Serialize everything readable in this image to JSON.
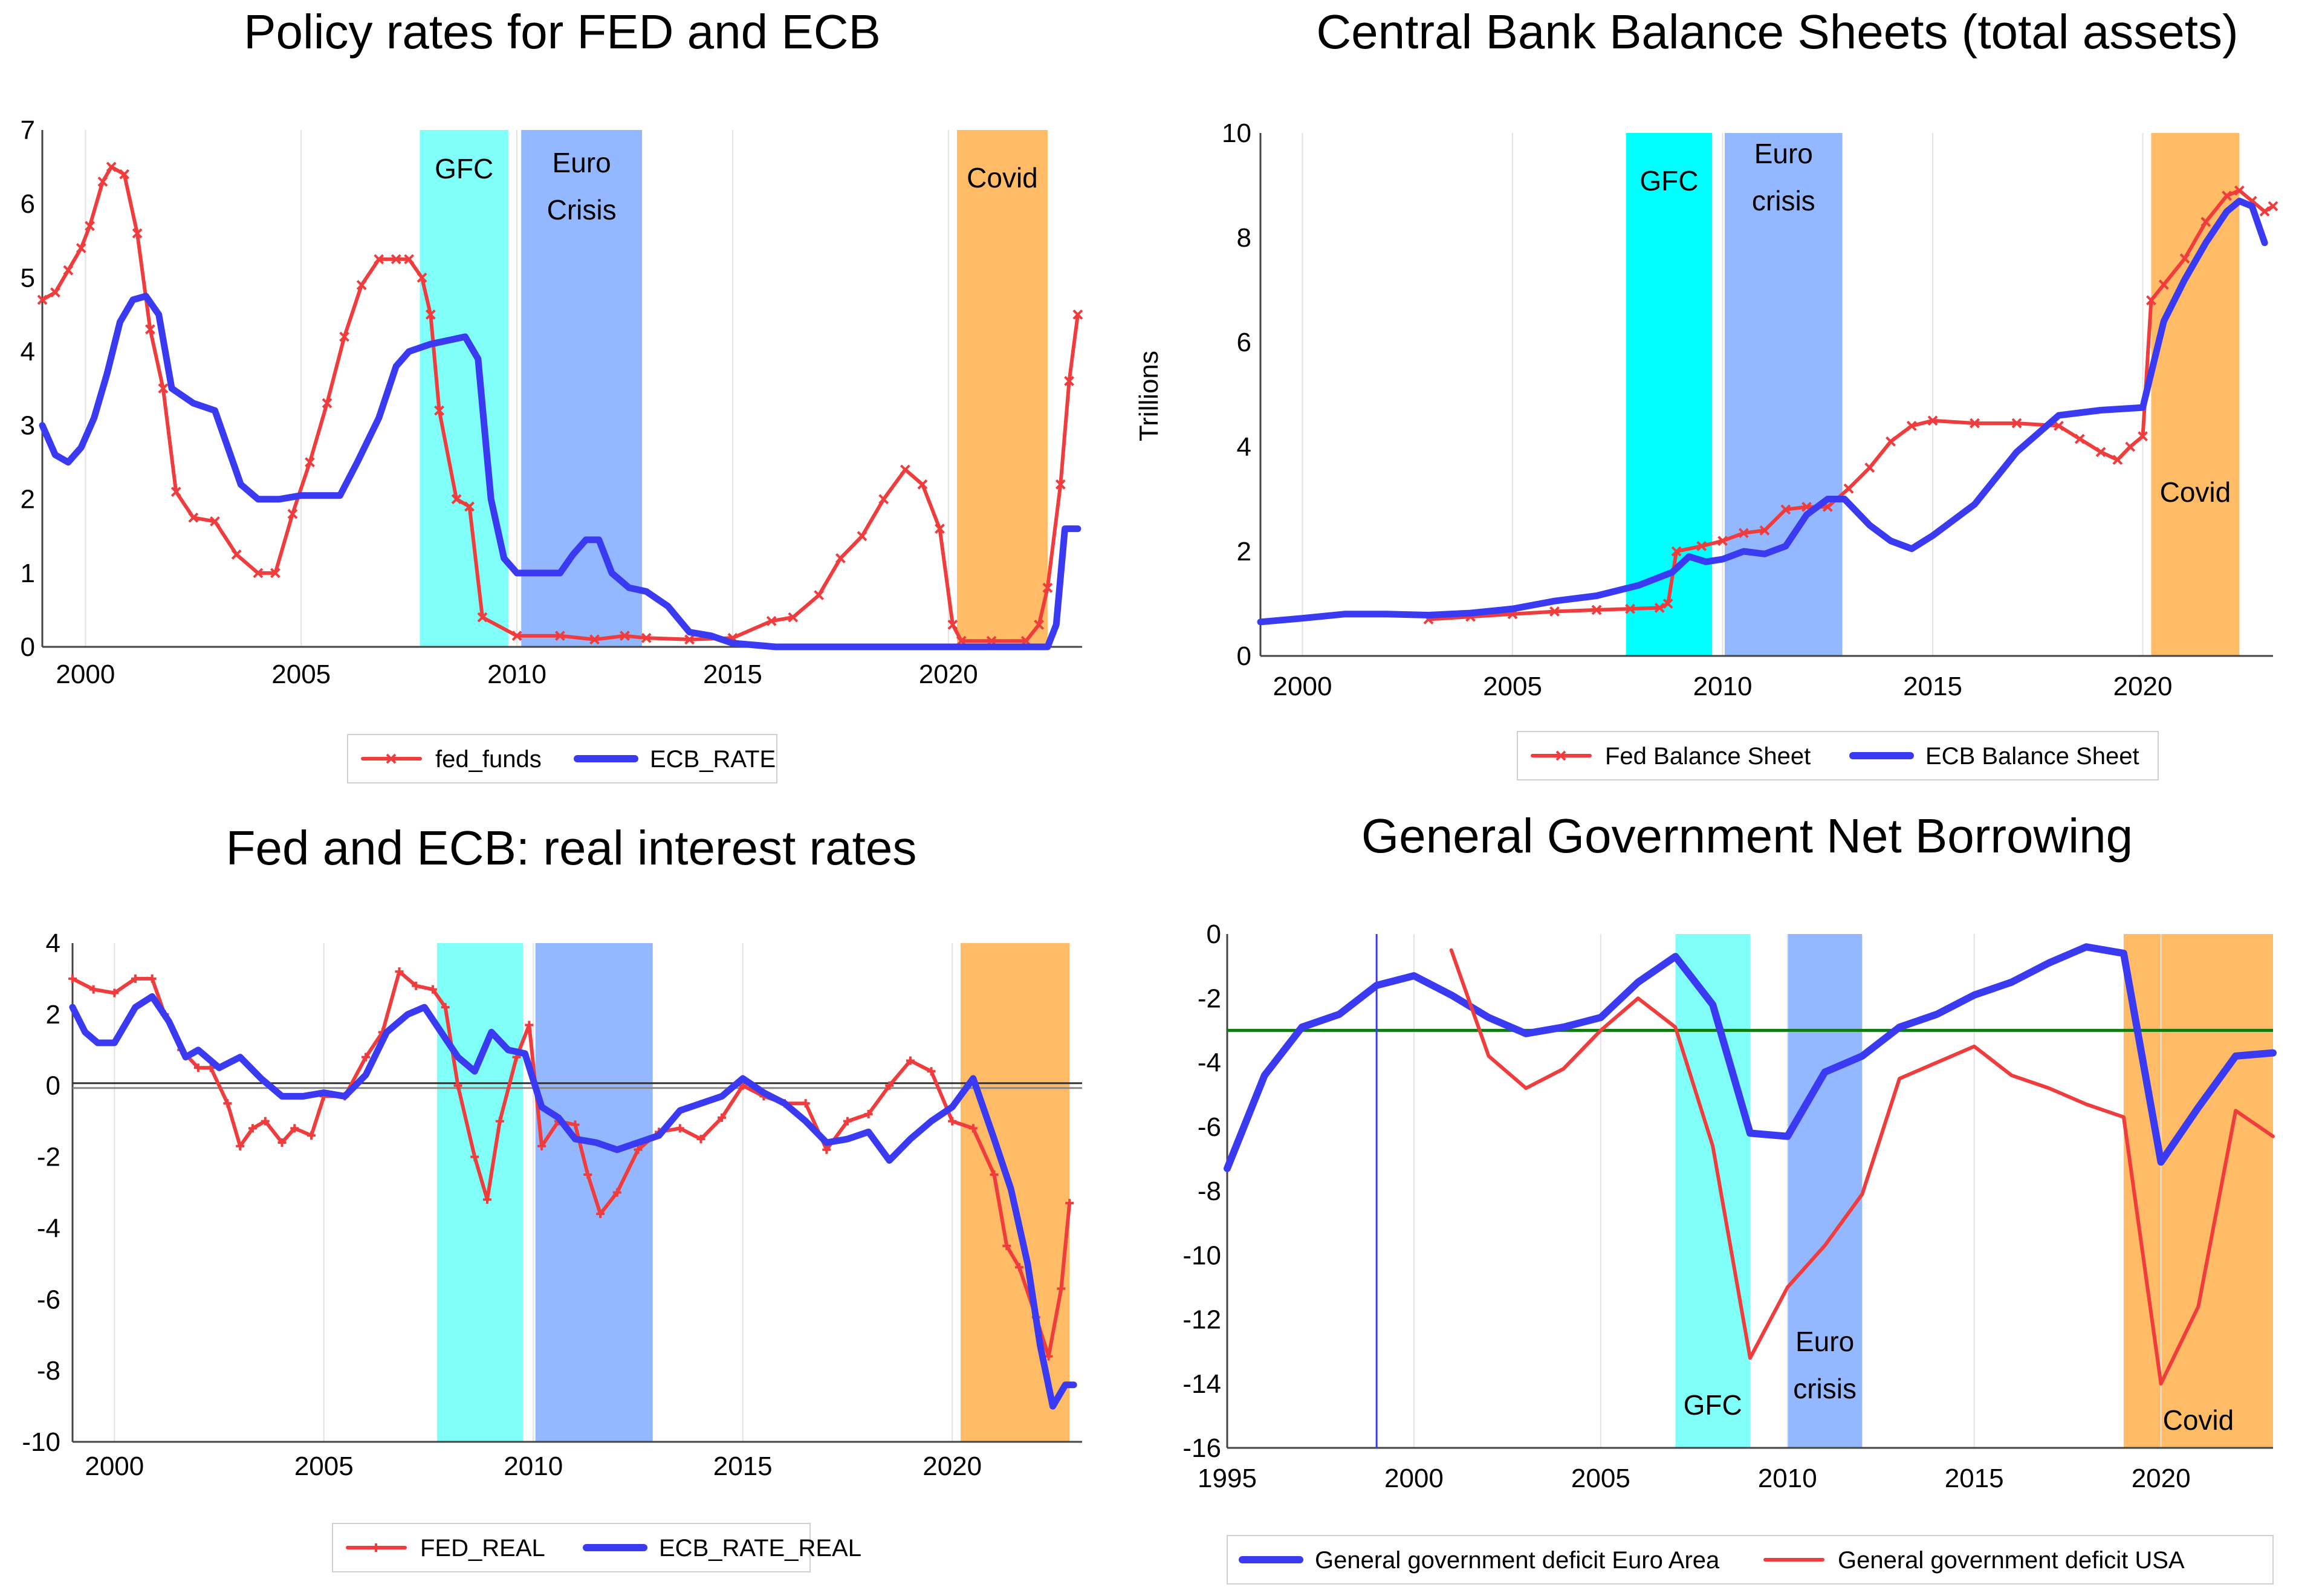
{
  "chart_data": [
    {
      "id": "p1",
      "type": "line",
      "title": "Policy rates for FED and ECB",
      "ylabel": "",
      "xlim": [
        1999,
        2023.1
      ],
      "ylim": [
        0,
        7
      ],
      "xticks": [
        2000,
        2005,
        2010,
        2015,
        2020
      ],
      "yticks": [
        0,
        1,
        2,
        3,
        4,
        5,
        6,
        7
      ],
      "bands": [
        {
          "label": "GFC",
          "from": 2007.75,
          "to": 2009.8,
          "color": "#7ffff7"
        },
        {
          "label": "Euro\nCrisis",
          "from": 2010.1,
          "to": 2012.9,
          "color": "#94b8ff"
        },
        {
          "label": "Covid",
          "from": 2020.2,
          "to": 2022.3,
          "color": "#ffbb66"
        }
      ],
      "series": [
        {
          "name": "fed_funds",
          "color": "#f03c3c",
          "marker": "x",
          "x": [
            1999,
            1999.3,
            1999.6,
            1999.9,
            2000.1,
            2000.4,
            2000.6,
            2000.9,
            2001.2,
            2001.5,
            2001.8,
            2002.1,
            2002.5,
            2003,
            2003.5,
            2004,
            2004.4,
            2004.8,
            2005.2,
            2005.6,
            2006,
            2006.4,
            2006.8,
            2007.2,
            2007.5,
            2007.8,
            2008,
            2008.2,
            2008.6,
            2008.9,
            2009.2,
            2010,
            2011,
            2011.8,
            2012.5,
            2013,
            2014,
            2015,
            2015.9,
            2016.4,
            2017,
            2017.5,
            2018,
            2018.5,
            2019,
            2019.4,
            2019.8,
            2020.1,
            2020.3,
            2021,
            2021.8,
            2022.1,
            2022.3,
            2022.6,
            2022.8,
            2023
          ],
          "y": [
            4.7,
            4.8,
            5.1,
            5.4,
            5.7,
            6.3,
            6.5,
            6.4,
            5.6,
            4.3,
            3.5,
            2.1,
            1.75,
            1.7,
            1.25,
            1.0,
            1.0,
            1.8,
            2.5,
            3.3,
            4.2,
            4.9,
            5.25,
            5.25,
            5.25,
            5.0,
            4.5,
            3.2,
            2.0,
            1.9,
            0.4,
            0.15,
            0.15,
            0.1,
            0.15,
            0.12,
            0.1,
            0.12,
            0.35,
            0.4,
            0.7,
            1.2,
            1.5,
            2.0,
            2.4,
            2.2,
            1.6,
            0.3,
            0.08,
            0.08,
            0.08,
            0.3,
            0.8,
            2.2,
            3.6,
            4.5
          ]
        },
        {
          "name": "ECB_RATE",
          "color": "#3a3af2",
          "marker": "",
          "x": [
            1999,
            1999.3,
            1999.6,
            1999.9,
            2000.2,
            2000.5,
            2000.8,
            2001.1,
            2001.4,
            2001.7,
            2002,
            2002.5,
            2003,
            2003.3,
            2003.6,
            2004,
            2004.5,
            2005,
            2005.5,
            2005.9,
            2006.3,
            2006.8,
            2007.2,
            2007.5,
            2008,
            2008.4,
            2008.8,
            2009.1,
            2009.4,
            2009.7,
            2010,
            2011,
            2011.3,
            2011.6,
            2011.9,
            2012.2,
            2012.6,
            2013,
            2013.5,
            2014,
            2014.5,
            2015,
            2016,
            2017,
            2018,
            2019,
            2020,
            2021,
            2022.3,
            2022.5,
            2022.7,
            2023
          ],
          "y": [
            3.0,
            2.6,
            2.5,
            2.7,
            3.1,
            3.7,
            4.4,
            4.7,
            4.75,
            4.5,
            3.5,
            3.3,
            3.2,
            2.7,
            2.2,
            2.0,
            2.0,
            2.05,
            2.05,
            2.05,
            2.5,
            3.1,
            3.8,
            4.0,
            4.1,
            4.15,
            4.2,
            3.9,
            2.0,
            1.2,
            1.0,
            1.0,
            1.25,
            1.45,
            1.45,
            1.0,
            0.8,
            0.75,
            0.55,
            0.2,
            0.15,
            0.05,
            0.0,
            0.0,
            0.0,
            0.0,
            0.0,
            0.0,
            0.0,
            0.3,
            1.6,
            1.6
          ]
        }
      ],
      "legend": [
        "fed_funds",
        "ECB_RATE"
      ]
    },
    {
      "id": "p2",
      "type": "line",
      "title": "Central Bank Balance Sheets (total assets)",
      "ylabel": "Trillions",
      "xlim": [
        1999,
        2023.1
      ],
      "ylim": [
        0,
        10
      ],
      "xticks": [
        2000,
        2005,
        2010,
        2015,
        2020
      ],
      "yticks": [
        0,
        2,
        4,
        6,
        8,
        10
      ],
      "bands": [
        {
          "label": "GFC",
          "from": 2007.7,
          "to": 2009.75,
          "color": "#00ffff"
        },
        {
          "label": "Euro\ncrisis",
          "from": 2010.05,
          "to": 2012.85,
          "color": "#94b8ff"
        },
        {
          "label": "Covid",
          "from": 2020.2,
          "to": 2022.3,
          "color": "#ffbb66"
        }
      ],
      "series": [
        {
          "name": "Fed Balance Sheet",
          "color": "#f03c3c",
          "marker": "x",
          "x": [
            2003,
            2004,
            2005,
            2006,
            2007,
            2007.8,
            2008.5,
            2008.7,
            2008.9,
            2009.5,
            2010,
            2010.5,
            2011,
            2011.5,
            2012,
            2012.5,
            2013,
            2013.5,
            2014,
            2014.5,
            2015,
            2016,
            2017,
            2018,
            2018.5,
            2019,
            2019.4,
            2019.7,
            2020,
            2020.2,
            2020.5,
            2021,
            2021.5,
            2022,
            2022.3,
            2022.6,
            2022.9,
            2023.1
          ],
          "y": [
            0.7,
            0.75,
            0.8,
            0.85,
            0.88,
            0.9,
            0.92,
            1.0,
            2.0,
            2.1,
            2.2,
            2.35,
            2.4,
            2.8,
            2.85,
            2.85,
            3.2,
            3.6,
            4.1,
            4.4,
            4.5,
            4.45,
            4.45,
            4.4,
            4.15,
            3.9,
            3.75,
            4.0,
            4.2,
            6.8,
            7.1,
            7.6,
            8.3,
            8.8,
            8.9,
            8.7,
            8.5,
            8.6
          ]
        },
        {
          "name": "ECB  Balance Sheet",
          "color": "#3a3af2",
          "marker": "",
          "x": [
            1999,
            2000,
            2001,
            2002,
            2003,
            2004,
            2005,
            2006,
            2007,
            2008,
            2008.8,
            2009.2,
            2009.6,
            2010,
            2010.5,
            2011,
            2011.5,
            2012,
            2012.5,
            2012.9,
            2013.5,
            2014,
            2014.5,
            2015,
            2016,
            2017,
            2018,
            2019,
            2020,
            2020.5,
            2021,
            2021.5,
            2022,
            2022.3,
            2022.6,
            2022.9
          ],
          "y": [
            0.65,
            0.72,
            0.8,
            0.8,
            0.78,
            0.82,
            0.9,
            1.05,
            1.15,
            1.35,
            1.6,
            1.9,
            1.8,
            1.85,
            2.0,
            1.95,
            2.1,
            2.7,
            3.0,
            3.0,
            2.5,
            2.2,
            2.05,
            2.3,
            2.9,
            3.9,
            4.6,
            4.7,
            4.75,
            6.4,
            7.2,
            7.9,
            8.5,
            8.7,
            8.6,
            7.9
          ]
        }
      ],
      "legend": [
        "Fed Balance Sheet",
        "ECB  Balance Sheet"
      ]
    },
    {
      "id": "p3",
      "type": "line",
      "title": "Fed and ECB: real interest rates",
      "ylabel": "",
      "xlim": [
        1999,
        2023.1
      ],
      "ylim": [
        -10,
        4
      ],
      "xticks": [
        2000,
        2005,
        2010,
        2015,
        2020
      ],
      "yticks": [
        -10,
        -8,
        -6,
        -4,
        -2,
        0,
        2,
        4
      ],
      "zero_line": true,
      "bands": [
        {
          "label": "",
          "from": 2007.7,
          "to": 2009.75,
          "color": "#7ffff7"
        },
        {
          "label": "",
          "from": 2010.05,
          "to": 2012.85,
          "color": "#94b8ff"
        },
        {
          "label": "",
          "from": 2020.2,
          "to": 2022.8,
          "color": "#ffbb66"
        }
      ],
      "series": [
        {
          "name": "FED_REAL",
          "color": "#f03c3c",
          "marker": "+",
          "x": [
            1999,
            1999.5,
            2000,
            2000.5,
            2000.9,
            2001.2,
            2001.6,
            2002,
            2002.3,
            2002.7,
            2003,
            2003.3,
            2003.6,
            2004,
            2004.3,
            2004.7,
            2005,
            2005.5,
            2006,
            2006.4,
            2006.8,
            2007.2,
            2007.6,
            2007.9,
            2008.2,
            2008.6,
            2008.9,
            2009.2,
            2009.6,
            2009.9,
            2010.2,
            2010.6,
            2011,
            2011.3,
            2011.6,
            2012,
            2012.5,
            2013,
            2013.5,
            2014,
            2014.5,
            2015,
            2015.5,
            2016,
            2016.5,
            2017,
            2017.5,
            2018,
            2018.5,
            2019,
            2019.5,
            2020,
            2020.5,
            2021,
            2021.3,
            2021.6,
            2022,
            2022.3,
            2022.6,
            2022.8
          ],
          "y": [
            3.0,
            2.7,
            2.6,
            3.0,
            3.0,
            2.0,
            1.0,
            0.5,
            0.5,
            -0.5,
            -1.7,
            -1.2,
            -1.0,
            -1.6,
            -1.2,
            -1.4,
            -0.3,
            -0.3,
            0.8,
            1.5,
            3.2,
            2.8,
            2.7,
            2.2,
            0.0,
            -2.0,
            -3.2,
            -1.0,
            0.8,
            1.7,
            -1.7,
            -1.0,
            -1.1,
            -2.5,
            -3.6,
            -3.0,
            -1.8,
            -1.3,
            -1.2,
            -1.5,
            -0.9,
            0.0,
            -0.3,
            -0.5,
            -0.5,
            -1.8,
            -1.0,
            -0.8,
            0.0,
            0.7,
            0.4,
            -1.0,
            -1.2,
            -2.5,
            -4.5,
            -5.1,
            -6.5,
            -7.6,
            -5.7,
            -3.3
          ]
        },
        {
          "name": "ECB_RATE_REAL",
          "color": "#3a3af2",
          "marker": "",
          "x": [
            1999,
            1999.3,
            1999.6,
            2000,
            2000.5,
            2000.9,
            2001.3,
            2001.7,
            2002,
            2002.5,
            2003,
            2003.5,
            2004,
            2004.5,
            2005,
            2005.5,
            2006,
            2006.5,
            2007,
            2007.4,
            2007.8,
            2008.2,
            2008.6,
            2009,
            2009.4,
            2009.8,
            2010.2,
            2010.6,
            2011,
            2011.5,
            2012,
            2012.5,
            2013,
            2013.5,
            2014,
            2014.5,
            2015,
            2015.5,
            2016,
            2016.5,
            2017,
            2017.5,
            2018,
            2018.5,
            2019,
            2019.5,
            2020,
            2020.5,
            2021,
            2021.4,
            2021.8,
            2022.1,
            2022.4,
            2022.7,
            2022.9
          ],
          "y": [
            2.2,
            1.5,
            1.2,
            1.2,
            2.2,
            2.5,
            1.8,
            0.8,
            1.0,
            0.5,
            0.8,
            0.2,
            -0.3,
            -0.3,
            -0.2,
            -0.3,
            0.3,
            1.5,
            2.0,
            2.2,
            1.5,
            0.8,
            0.4,
            1.5,
            1.0,
            0.9,
            -0.6,
            -0.9,
            -1.5,
            -1.6,
            -1.8,
            -1.6,
            -1.4,
            -0.7,
            -0.5,
            -0.3,
            0.2,
            -0.2,
            -0.5,
            -1.0,
            -1.6,
            -1.5,
            -1.3,
            -2.1,
            -1.5,
            -1.0,
            -0.6,
            0.2,
            -1.5,
            -2.9,
            -5.0,
            -7.3,
            -9.0,
            -8.4,
            -8.4
          ]
        }
      ],
      "legend": [
        "FED_REAL",
        "ECB_RATE_REAL"
      ]
    },
    {
      "id": "p4",
      "type": "line",
      "title": "General Government Net Borrowing",
      "ylabel": "",
      "xlim": [
        1995,
        2023
      ],
      "ylim": [
        -16,
        0
      ],
      "xticks": [
        1995,
        2000,
        2005,
        2010,
        2015,
        2020
      ],
      "yticks": [
        -16,
        -14,
        -12,
        -10,
        -8,
        -6,
        -4,
        -2,
        0
      ],
      "hline": {
        "y": -3,
        "color": "#0f7a0f"
      },
      "vline": {
        "x": 1999,
        "color": "#3a3af2"
      },
      "bands": [
        {
          "label": "GFC",
          "from": 2007,
          "to": 2009,
          "color": "#7ffff7"
        },
        {
          "label": "Euro\ncrisis",
          "from": 2010,
          "to": 2012,
          "color": "#94b8ff"
        },
        {
          "label": "Covid",
          "from": 2019,
          "to": 2023,
          "color": "#ffbb66"
        }
      ],
      "series": [
        {
          "name": "General government deficit Euro Area",
          "color": "#3a3af2",
          "marker": "",
          "x": [
            1995,
            1996,
            1997,
            1998,
            1999,
            2000,
            2001,
            2002,
            2003,
            2004,
            2005,
            2006,
            2007,
            2008,
            2009,
            2010,
            2011,
            2012,
            2013,
            2014,
            2015,
            2016,
            2017,
            2018,
            2019,
            2020,
            2021,
            2022,
            2023
          ],
          "y": [
            -7.3,
            -4.4,
            -2.9,
            -2.5,
            -1.6,
            -1.3,
            -1.9,
            -2.6,
            -3.1,
            -2.9,
            -2.6,
            -1.5,
            -0.7,
            -2.2,
            -6.2,
            -6.3,
            -4.3,
            -3.8,
            -2.9,
            -2.5,
            -1.9,
            -1.5,
            -0.9,
            -0.4,
            -0.6,
            -7.1,
            -5.4,
            -3.8,
            -3.7
          ]
        },
        {
          "name": "General government deficit USA",
          "color": "#f03c3c",
          "marker": "",
          "x": [
            2001,
            2002,
            2003,
            2004,
            2005,
            2006,
            2007,
            2008,
            2009,
            2010,
            2011,
            2012,
            2013,
            2014,
            2015,
            2016,
            2017,
            2018,
            2019,
            2020,
            2021,
            2022,
            2023
          ],
          "y": [
            -0.5,
            -3.8,
            -4.8,
            -4.2,
            -3.0,
            -2.0,
            -2.9,
            -6.6,
            -13.2,
            -11.0,
            -9.7,
            -8.1,
            -4.5,
            -4.0,
            -3.5,
            -4.4,
            -4.8,
            -5.3,
            -5.7,
            -14.0,
            -11.6,
            -5.5,
            -6.3
          ]
        }
      ],
      "legend": [
        "General government deficit Euro Area",
        "General government deficit USA"
      ]
    }
  ]
}
